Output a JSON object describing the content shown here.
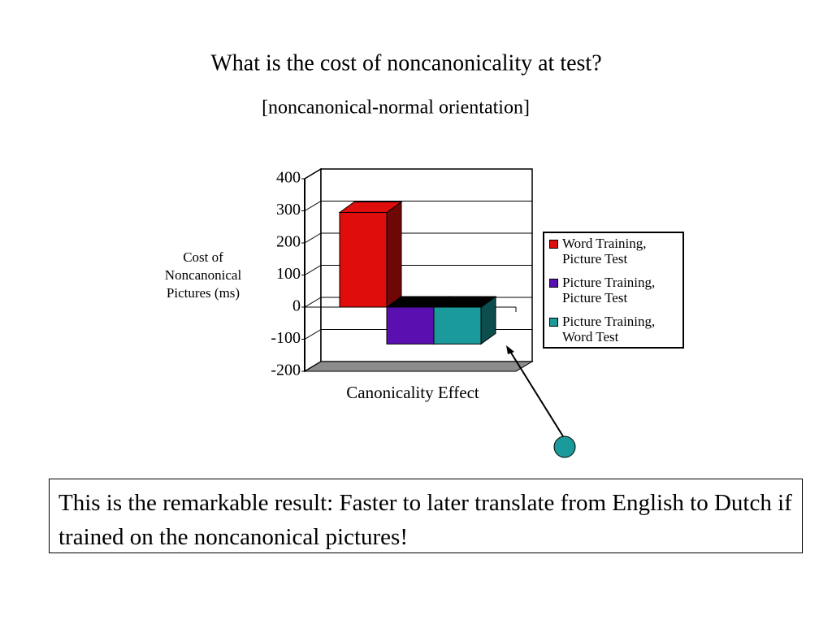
{
  "chart_data": {
    "type": "bar3d",
    "title": "What is the cost of noncanonicality at test?",
    "subtitle": "[noncanonical-normal orientation]",
    "y_label": "Cost of Noncanonical Pictures (ms)",
    "categories": [
      "Canonicality Effect"
    ],
    "series": [
      {
        "name": "Word Training, Picture Test",
        "color": "#e00d0d",
        "values": [
          295
        ]
      },
      {
        "name": "Picture Training, Picture Test",
        "color": "#5a0fb0",
        "values": [
          -115
        ]
      },
      {
        "name": "Picture Training, Word Test",
        "color": "#1a9a9a",
        "values": [
          -115
        ]
      }
    ],
    "ylim": [
      -200,
      400
    ],
    "yticks": [
      400,
      300,
      200,
      100,
      0,
      -100,
      -200
    ],
    "grid": true
  },
  "caption": "This is the remarkable result: Faster to later translate from English to Dutch if trained on the noncanonical pictures!"
}
